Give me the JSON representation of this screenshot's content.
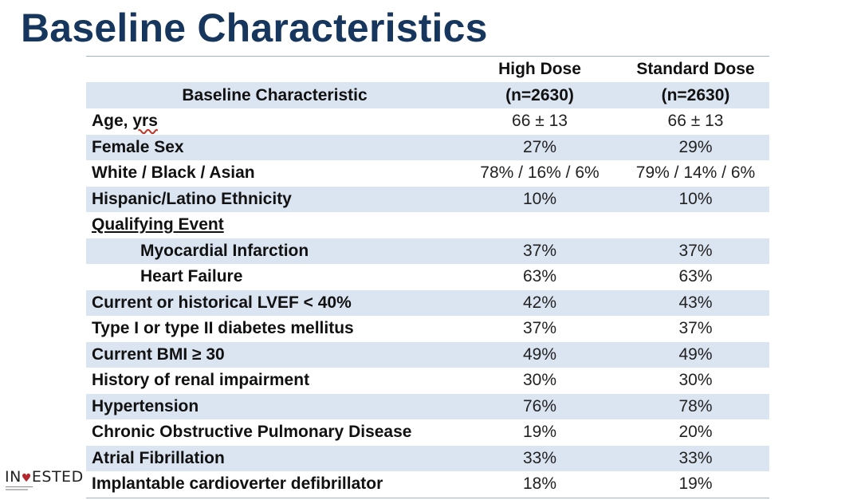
{
  "title": "Baseline Characteristics",
  "table": {
    "header_row1": [
      "",
      "High Dose",
      "Standard Dose"
    ],
    "header_row2": [
      "Baseline Characteristic",
      "(n=2630)",
      "(n=2630)"
    ],
    "rows": [
      {
        "label": "Age, ",
        "label_wavy": "yrs",
        "high": "66 ± 13",
        "standard": "66 ± 13",
        "shaded": false
      },
      {
        "label": "Female Sex",
        "high": "27%",
        "standard": "29%",
        "shaded": true
      },
      {
        "label": "White / Black / Asian",
        "high": "78% / 16% / 6%",
        "standard": "79% / 14% / 6%",
        "shaded": false
      },
      {
        "label": "Hispanic/Latino Ethnicity",
        "high": "10%",
        "standard": "10%",
        "shaded": true
      },
      {
        "label": "Qualifying Event",
        "high": "",
        "standard": "",
        "shaded": false,
        "style": "underline"
      },
      {
        "label": "Myocardial Infarction",
        "high": "37%",
        "standard": "37%",
        "shaded": true,
        "style": "indent"
      },
      {
        "label": "Heart Failure",
        "high": "63%",
        "standard": "63%",
        "shaded": false,
        "style": "indent"
      },
      {
        "label": "Current or historical LVEF < 40%",
        "high": "42%",
        "standard": "43%",
        "shaded": true
      },
      {
        "label": "Type I or type II diabetes mellitus",
        "high": "37%",
        "standard": "37%",
        "shaded": false
      },
      {
        "label": "Current BMI ≥ 30",
        "high": "49%",
        "standard": "49%",
        "shaded": true
      },
      {
        "label": "History of renal impairment",
        "high": "30%",
        "standard": "30%",
        "shaded": false
      },
      {
        "label": "Hypertension",
        "high": "76%",
        "standard": "78%",
        "shaded": true
      },
      {
        "label": "Chronic Obstructive Pulmonary Disease",
        "high": "19%",
        "standard": "20%",
        "shaded": false
      },
      {
        "label": "Atrial Fibrillation",
        "high": "33%",
        "standard": "33%",
        "shaded": true
      },
      {
        "label": "Implantable cardioverter defibrillator",
        "high": "18%",
        "standard": "19%",
        "shaded": false
      }
    ]
  },
  "logo": {
    "prefix": "IN",
    "mark": "♥",
    "suffix": "ESTED"
  },
  "colors": {
    "title": "#17365d",
    "row_shade": "#dbe4f1",
    "logo_heart": "#b3262e"
  }
}
